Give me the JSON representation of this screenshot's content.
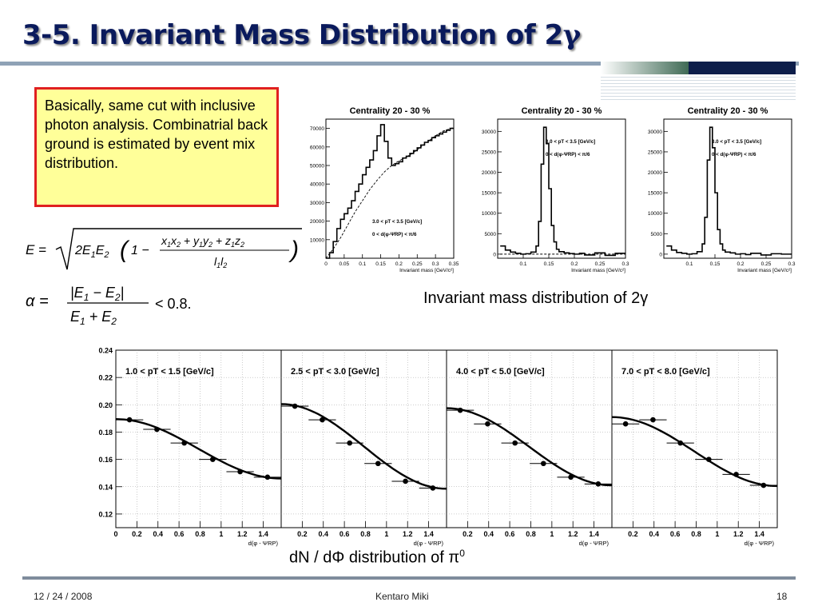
{
  "slide": {
    "title": "3-5. Invariant Mass Distribution of 2",
    "title_symbol": "γ",
    "note": "Basically, same cut with inclusive photon analysis. Combinatrial back ground is estimated by event mix distribution.",
    "eq1": "E = √( 2E₁E₂ ( 1 − (x₁x₂ + y₁y₂ + z₁z₂) / (l₁l₂) ) )",
    "eq2": "α = |E₁ − E₂| / (E₁ + E₂) < 0.8.",
    "caption_top": "Invariant mass distribution of 2γ",
    "caption_bottom": "dN / dΦ distribution of π",
    "caption_bottom_sup": "0",
    "footer_date": "12 / 24 / 2008",
    "footer_author": "Kentaro Miki",
    "footer_page": "18",
    "colors": {
      "title": "#0a1a5c",
      "note_bg": "#ffff99",
      "note_border": "#e02020",
      "footer_rule": "#7f8c9c"
    }
  },
  "chart_data": [
    {
      "type": "line",
      "title": "Centrality 20 - 30 %",
      "xlabel": "Invariant mass [GeV/c²]",
      "xlim": [
        0,
        0.35
      ],
      "ylim": [
        0,
        75000
      ],
      "xticks": [
        "0",
        "0.05",
        "0.1",
        "0.15",
        "0.2",
        "0.25",
        "0.3",
        "0.35"
      ],
      "yticks": [
        "10000",
        "20000",
        "30000",
        "40000",
        "50000",
        "60000",
        "70000"
      ],
      "annotations": [
        "3.0 < pT < 3.5 [GeV/c]",
        "0 < d(φ-ΨRP) < π/6"
      ],
      "series": [
        {
          "style": "histogram",
          "x": [
            0,
            0.01,
            0.02,
            0.03,
            0.04,
            0.05,
            0.06,
            0.07,
            0.08,
            0.09,
            0.1,
            0.11,
            0.12,
            0.13,
            0.14,
            0.15,
            0.16,
            0.17,
            0.18,
            0.19,
            0.2,
            0.21,
            0.22,
            0.23,
            0.24,
            0.25,
            0.26,
            0.27,
            0.28,
            0.29,
            0.3,
            0.31,
            0.32,
            0.33,
            0.34,
            0.35
          ],
          "y": [
            0,
            3000,
            9000,
            16000,
            21000,
            24000,
            27000,
            31000,
            36000,
            40000,
            45000,
            49000,
            53000,
            58000,
            66000,
            72000,
            63000,
            54000,
            50000,
            51000,
            52000,
            54000,
            55000,
            56500,
            58000,
            59500,
            61000,
            62500,
            63500,
            65000,
            66000,
            67000,
            68000,
            69000,
            70000,
            70500
          ]
        },
        {
          "style": "dashed",
          "x": [
            0,
            0.02,
            0.04,
            0.06,
            0.08,
            0.1,
            0.12,
            0.14,
            0.16,
            0.18,
            0.2,
            0.22,
            0.24,
            0.26,
            0.28,
            0.3,
            0.32,
            0.35
          ],
          "y": [
            0,
            5000,
            11000,
            18000,
            25000,
            31000,
            37000,
            42000,
            46500,
            50000,
            52500,
            54500,
            57000,
            60000,
            63000,
            66000,
            68500,
            70500
          ]
        }
      ]
    },
    {
      "type": "line",
      "title": "Centrality 20 - 30 %",
      "xlabel": "Invariant mass [GeV/c²]",
      "xlim": [
        0.05,
        0.3
      ],
      "ylim": [
        -1000,
        33000
      ],
      "xticks": [
        "0.1",
        "0.15",
        "0.2",
        "0.25",
        "0.3"
      ],
      "yticks": [
        "0",
        "5000",
        "10000",
        "15000",
        "20000",
        "25000",
        "30000"
      ],
      "annotations": [
        "3.0 < pT < 3.5 [GeV/c]",
        "0 < d(φ-ΨRP) < π/6"
      ],
      "series": [
        {
          "style": "histogram",
          "x": [
            0.055,
            0.065,
            0.075,
            0.085,
            0.095,
            0.105,
            0.115,
            0.125,
            0.13,
            0.135,
            0.14,
            0.145,
            0.15,
            0.155,
            0.16,
            0.165,
            0.17,
            0.18,
            0.19,
            0.2,
            0.21,
            0.22,
            0.24,
            0.26,
            0.28,
            0.3
          ],
          "y": [
            2000,
            1000,
            500,
            200,
            0,
            100,
            500,
            2000,
            8000,
            22000,
            31000,
            27000,
            16000,
            7000,
            3000,
            1200,
            600,
            300,
            150,
            0,
            200,
            -200,
            300,
            -300,
            200,
            100
          ]
        },
        {
          "style": "dashed",
          "x": [
            0.055,
            0.3
          ],
          "y": [
            0,
            0
          ]
        }
      ]
    },
    {
      "type": "line",
      "title": "Centrality 20 - 30 %",
      "xlabel": "Invariant mass [GeV/c²]",
      "xlim": [
        0.05,
        0.3
      ],
      "ylim": [
        -1000,
        33000
      ],
      "xticks": [
        "0.1",
        "0.15",
        "0.2",
        "0.25",
        "0.3"
      ],
      "yticks": [
        "0",
        "5000",
        "10000",
        "15000",
        "20000",
        "25000",
        "30000"
      ],
      "annotations": [
        "3.0 < pT < 3.5 [GeV/c]",
        "0 < d(φ-ΨRP) < π/6"
      ],
      "series": [
        {
          "style": "histogram",
          "x": [
            0.055,
            0.065,
            0.075,
            0.085,
            0.095,
            0.105,
            0.115,
            0.125,
            0.13,
            0.135,
            0.14,
            0.145,
            0.15,
            0.155,
            0.16,
            0.165,
            0.17,
            0.18,
            0.19,
            0.2,
            0.21,
            0.22,
            0.24,
            0.26,
            0.28,
            0.3
          ],
          "y": [
            2000,
            1000,
            400,
            200,
            0,
            100,
            600,
            2500,
            9000,
            23000,
            31000,
            26000,
            15000,
            6000,
            2500,
            1000,
            500,
            300,
            0,
            100,
            -100,
            200,
            -200,
            100,
            0,
            0
          ]
        }
      ]
    },
    {
      "type": "scatter",
      "xlabel": "d(φ - ΨRP)",
      "xlim": [
        0,
        1.57
      ],
      "ylim": [
        0.11,
        0.24
      ],
      "xticks": [
        "0",
        "0.2",
        "0.4",
        "0.6",
        "0.8",
        "1",
        "1.2",
        "1.4"
      ],
      "yticks": [
        "0.12",
        "0.14",
        "0.16",
        "0.18",
        "0.20",
        "0.22",
        "0.24"
      ],
      "annotations": [
        "1.0 < pT < 1.5 [GeV/c]"
      ],
      "series": [
        {
          "style": "points",
          "x": [
            0.13,
            0.39,
            0.65,
            0.92,
            1.18,
            1.44
          ],
          "y": [
            0.189,
            0.182,
            0.172,
            0.16,
            0.151,
            0.147
          ]
        },
        {
          "style": "fit",
          "x": [
            0,
            1.57
          ],
          "y": [
            0.1895,
            0.146
          ]
        }
      ]
    },
    {
      "type": "scatter",
      "xlabel": "d(φ - ΨRP)",
      "xlim": [
        0,
        1.57
      ],
      "ylim": [
        0.11,
        0.24
      ],
      "xticks": [
        "0.2",
        "0.4",
        "0.6",
        "0.8",
        "1",
        "1.2",
        "1.4"
      ],
      "annotations": [
        "2.5 < pT < 3.0 [GeV/c]"
      ],
      "series": [
        {
          "style": "points",
          "x": [
            0.13,
            0.39,
            0.65,
            0.92,
            1.18,
            1.44
          ],
          "y": [
            0.199,
            0.189,
            0.172,
            0.157,
            0.144,
            0.139
          ]
        },
        {
          "style": "fit",
          "x": [
            0,
            1.57
          ],
          "y": [
            0.2005,
            0.1385
          ]
        }
      ]
    },
    {
      "type": "scatter",
      "xlabel": "d(φ - ΨRP)",
      "xlim": [
        0,
        1.57
      ],
      "ylim": [
        0.11,
        0.24
      ],
      "xticks": [
        "0.2",
        "0.4",
        "0.6",
        "0.8",
        "1",
        "1.2",
        "1.4"
      ],
      "annotations": [
        "4.0 < pT < 5.0 [GeV/c]"
      ],
      "series": [
        {
          "style": "points",
          "x": [
            0.13,
            0.39,
            0.65,
            0.92,
            1.18,
            1.44
          ],
          "y": [
            0.196,
            0.186,
            0.172,
            0.157,
            0.147,
            0.142
          ]
        },
        {
          "style": "fit",
          "x": [
            0,
            1.57
          ],
          "y": [
            0.1975,
            0.141
          ]
        }
      ]
    },
    {
      "type": "scatter",
      "xlabel": "d(φ - ΨRP)",
      "xlim": [
        0,
        1.57
      ],
      "ylim": [
        0.11,
        0.24
      ],
      "xticks": [
        "0.2",
        "0.4",
        "0.6",
        "0.8",
        "1",
        "1.2",
        "1.4"
      ],
      "annotations": [
        "7.0 < pT < 8.0 [GeV/c]"
      ],
      "series": [
        {
          "style": "points",
          "x": [
            0.13,
            0.39,
            0.65,
            0.92,
            1.18,
            1.44
          ],
          "y": [
            0.186,
            0.189,
            0.172,
            0.16,
            0.149,
            0.141
          ]
        },
        {
          "style": "fit",
          "x": [
            0,
            1.57
          ],
          "y": [
            0.191,
            0.1405
          ]
        }
      ]
    }
  ]
}
